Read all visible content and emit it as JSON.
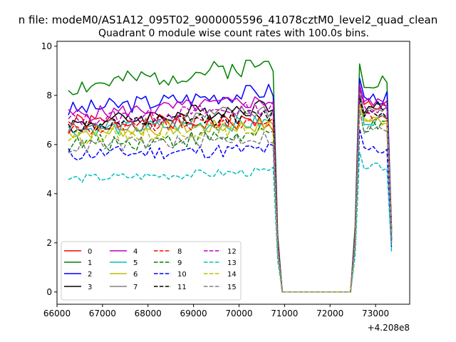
{
  "chart_data": {
    "type": "line",
    "suptitle": "n file: modeM0/AS1A12_095T02_9000005596_41078cztM0_level2_quad_clean",
    "title": "Quadrant 0 module wise count rates with 100.0s bins.",
    "xlabel": "",
    "ylabel": "",
    "x_offset_label": "+4.208e8",
    "xlim": [
      66000,
      73750
    ],
    "ylim": [
      -0.5,
      10.2
    ],
    "x_ticks": [
      66000,
      67000,
      68000,
      69000,
      70000,
      71000,
      72000,
      73000
    ],
    "y_ticks": [
      0,
      2,
      4,
      6,
      8,
      10
    ],
    "x_start": 66250,
    "x_step": 100,
    "legend_position": "lower-left",
    "legend_columns": 4,
    "series": [
      {
        "name": "0",
        "color": "#ff0000",
        "dash": "solid",
        "base": 6.9,
        "amp": 0.35,
        "rise": 0.0,
        "g": 7.6,
        "seed": 1
      },
      {
        "name": "1",
        "color": "#008000",
        "dash": "solid",
        "base": 8.3,
        "amp": 0.4,
        "rise": 1.0,
        "g": 8.6,
        "seed": 2
      },
      {
        "name": "2",
        "color": "#0000ff",
        "dash": "solid",
        "base": 7.4,
        "amp": 0.35,
        "rise": 0.8,
        "g": 7.9,
        "seed": 3
      },
      {
        "name": "3",
        "color": "#000000",
        "dash": "solid",
        "base": 6.8,
        "amp": 0.35,
        "rise": 0.8,
        "g": 7.5,
        "seed": 4
      },
      {
        "name": "4",
        "color": "#bf00bf",
        "dash": "solid",
        "base": 7.2,
        "amp": 0.3,
        "rise": 0.6,
        "g": 7.7,
        "seed": 5
      },
      {
        "name": "5",
        "color": "#00bfbf",
        "dash": "solid",
        "base": 6.6,
        "amp": 0.3,
        "rise": 0.3,
        "g": 7.0,
        "seed": 6
      },
      {
        "name": "6",
        "color": "#bfbf00",
        "dash": "solid",
        "base": 6.5,
        "amp": 0.3,
        "rise": 0.3,
        "g": 7.0,
        "seed": 7
      },
      {
        "name": "7",
        "color": "#808080",
        "dash": "solid",
        "base": 6.6,
        "amp": 0.35,
        "rise": 0.8,
        "g": 7.4,
        "seed": 8
      },
      {
        "name": "8",
        "color": "#ff0000",
        "dash": "dashed",
        "base": 6.6,
        "amp": 0.3,
        "rise": 0.4,
        "g": 7.1,
        "seed": 9
      },
      {
        "name": "9",
        "color": "#008000",
        "dash": "dashed",
        "base": 6.0,
        "amp": 0.35,
        "rise": 0.4,
        "g": 6.7,
        "seed": 10
      },
      {
        "name": "10",
        "color": "#0000ff",
        "dash": "dashed",
        "base": 5.6,
        "amp": 0.3,
        "rise": 0.2,
        "g": 5.8,
        "seed": 11
      },
      {
        "name": "11",
        "color": "#000000",
        "dash": "dashed",
        "base": 6.7,
        "amp": 0.3,
        "rise": 0.5,
        "g": 7.3,
        "seed": 12
      },
      {
        "name": "12",
        "color": "#bf00bf",
        "dash": "dashed",
        "base": 7.0,
        "amp": 0.3,
        "rise": 0.5,
        "g": 7.5,
        "seed": 13
      },
      {
        "name": "13",
        "color": "#00bfbf",
        "dash": "dashed",
        "base": 4.6,
        "amp": 0.18,
        "rise": 0.3,
        "g": 5.1,
        "seed": 14
      },
      {
        "name": "14",
        "color": "#bfbf00",
        "dash": "dashed",
        "base": 6.3,
        "amp": 0.3,
        "rise": 0.4,
        "g": 6.9,
        "seed": 15
      },
      {
        "name": "15",
        "color": "#808080",
        "dash": "dashed",
        "base": 5.9,
        "amp": 0.3,
        "rise": 0.4,
        "g": 6.6,
        "seed": 16
      }
    ]
  }
}
